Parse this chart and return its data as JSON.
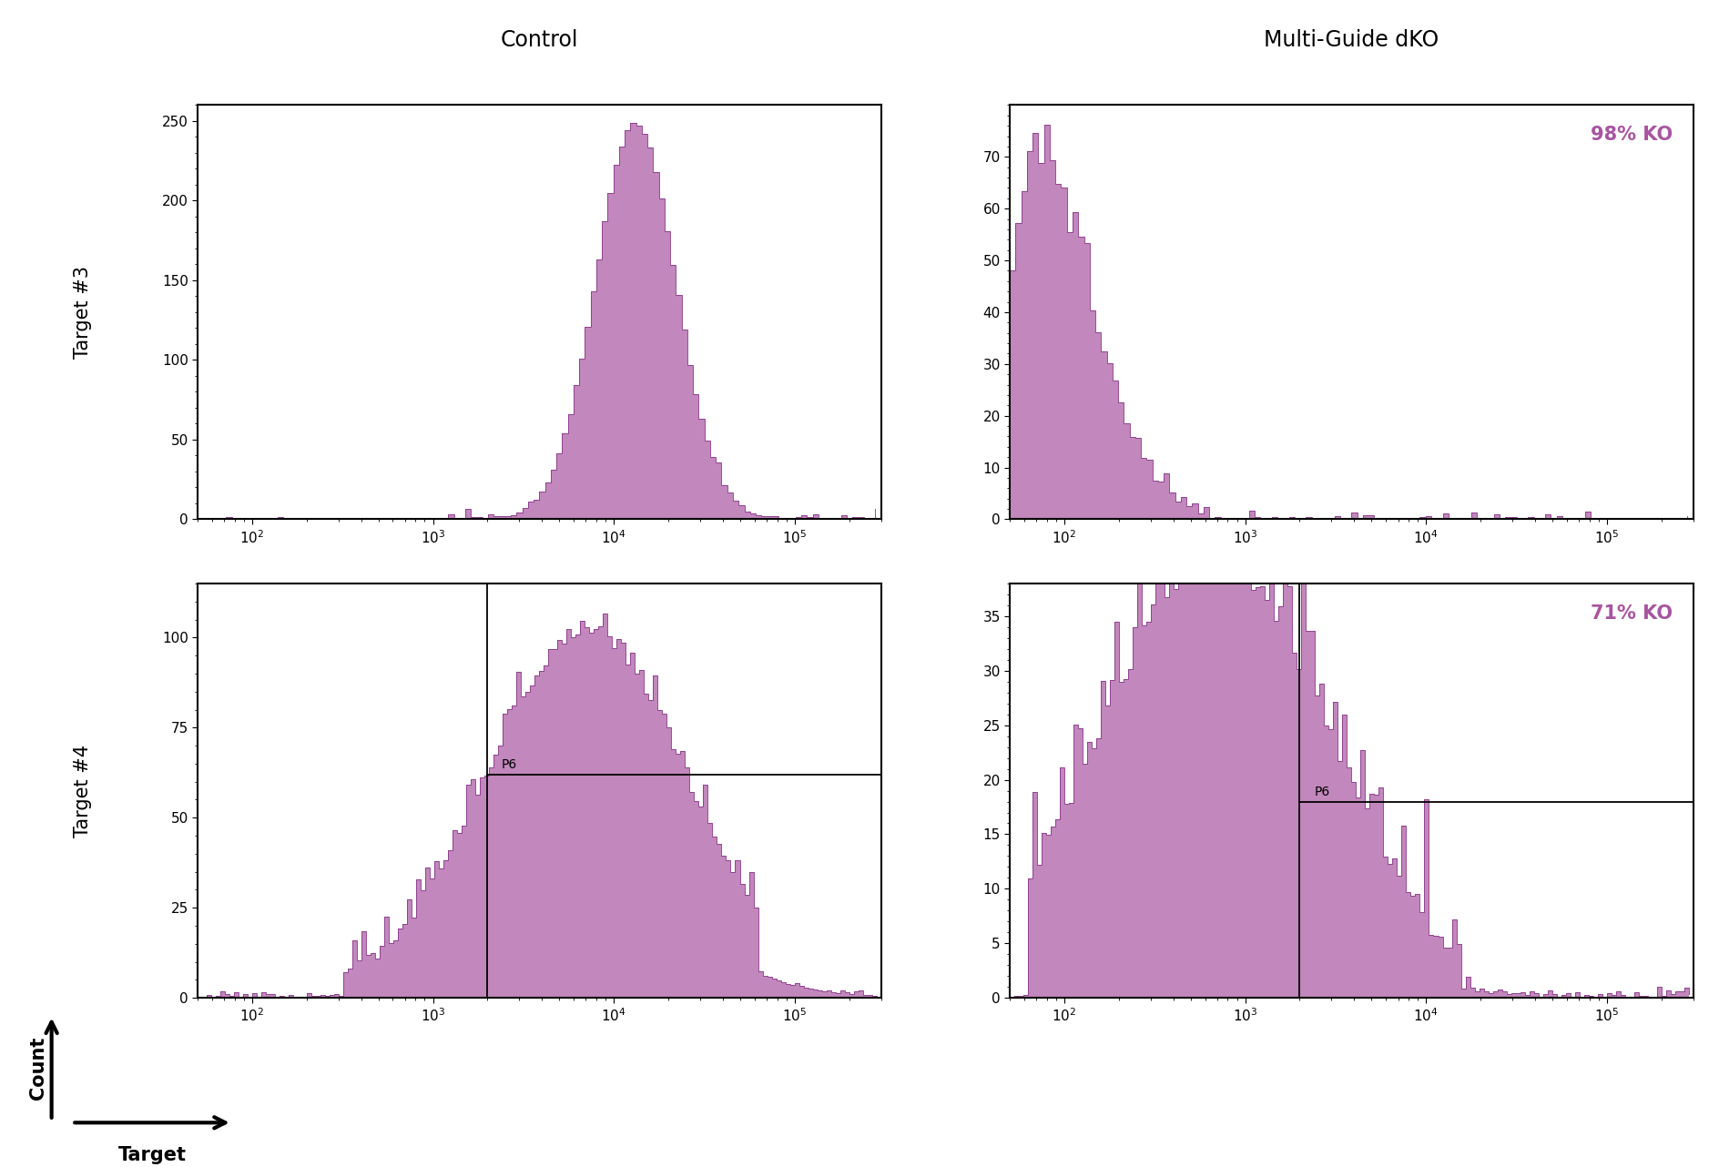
{
  "title_control": "Control",
  "title_dko": "Multi-Guide dKO",
  "row_labels": [
    "Target #3",
    "Target #4"
  ],
  "fill_color": "#A855A0",
  "edge_color": "#8B3A8B",
  "background_color": "#ffffff",
  "annotation_98": "98% KO",
  "annotation_71": "71% KO",
  "annotation_color": "#A855A0",
  "gate_label": "P6",
  "panels": {
    "top_left": {
      "xlim": [
        50,
        300000
      ],
      "ylim": [
        0,
        260
      ],
      "yticks": [
        0,
        50,
        100,
        150,
        200,
        250
      ],
      "log_bins": 120,
      "description": "Control T3: narrow peak at ~10^4, y max 250"
    },
    "top_right": {
      "xlim": [
        50,
        300000
      ],
      "ylim": [
        0,
        80
      ],
      "yticks": [
        0,
        10,
        20,
        30,
        40,
        50,
        60,
        70
      ],
      "log_bins": 120,
      "description": "dKO T3: spike at low end ~10^1.8, y max 70-75"
    },
    "bottom_left": {
      "xlim": [
        50,
        300000
      ],
      "ylim": [
        0,
        115
      ],
      "yticks": [
        0,
        25,
        50,
        75,
        100
      ],
      "log_bins": 150,
      "gate_x": 2000,
      "gate_y": 62,
      "description": "Control T4: broad peak ~10^3 to 10^4, y max ~108"
    },
    "bottom_right": {
      "xlim": [
        50,
        300000
      ],
      "ylim": [
        0,
        38
      ],
      "yticks": [
        0,
        5,
        10,
        15,
        20,
        25,
        30,
        35
      ],
      "log_bins": 150,
      "gate_x": 2000,
      "gate_y": 18,
      "description": "dKO T4: broad peak ~10^2 to 10^3, y max ~35"
    }
  },
  "xlabel_arrow_label": "Target",
  "ylabel_arrow_label": "Count",
  "title_fontsize": 17,
  "tick_fontsize": 11,
  "row_label_fontsize": 15,
  "annotation_fontsize": 15
}
